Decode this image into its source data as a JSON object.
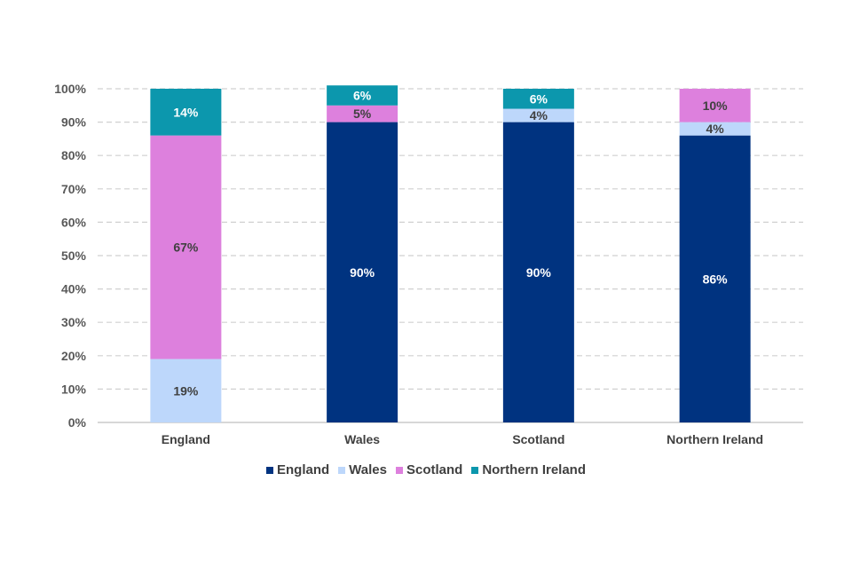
{
  "chart_data": {
    "type": "bar",
    "stacked": true,
    "categories": [
      "England",
      "Wales",
      "Scotland",
      "Northern Ireland"
    ],
    "series": [
      {
        "name": "England",
        "color": "#003380",
        "values": [
          0,
          90,
          90,
          86
        ],
        "labels": [
          "",
          "90%",
          "90%",
          "86%"
        ],
        "label_color": "#ffffff"
      },
      {
        "name": "Wales",
        "color": "#bdd7fb",
        "values": [
          19,
          0,
          4,
          4
        ],
        "labels": [
          "19%",
          "",
          "4%",
          "4%"
        ],
        "label_color": "#404040"
      },
      {
        "name": "Scotland",
        "color": "#dd80dd",
        "values": [
          67,
          5,
          0,
          10
        ],
        "labels": [
          "67%",
          "5%",
          "",
          "10%"
        ],
        "label_color": "#404040"
      },
      {
        "name": "Northern Ireland",
        "color": "#0c97ad",
        "values": [
          14,
          6,
          6,
          0
        ],
        "labels": [
          "14%",
          "6%",
          "6%",
          ""
        ],
        "label_color": "#ffffff"
      }
    ],
    "y_ticks": [
      "0%",
      "10%",
      "20%",
      "30%",
      "40%",
      "50%",
      "60%",
      "70%",
      "80%",
      "90%",
      "100%"
    ],
    "ylim": [
      0,
      100
    ],
    "grid": true,
    "legend_position": "bottom",
    "title": "",
    "xlabel": "",
    "ylabel": ""
  }
}
